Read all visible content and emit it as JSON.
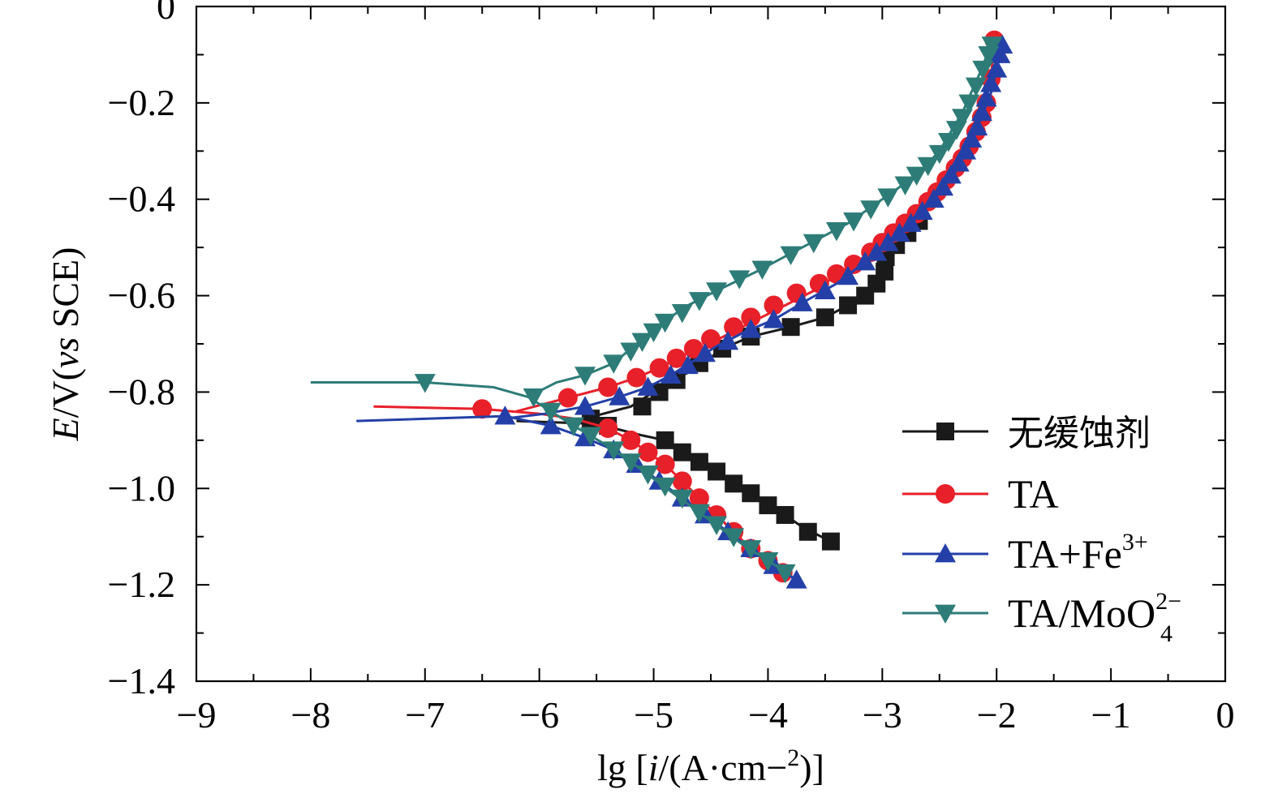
{
  "chart_data": {
    "type": "line",
    "title": "",
    "xlabel": "lg [i/(A·cm−2)]",
    "ylabel": "E/V(vs SCE)",
    "xlim": [
      -9,
      0
    ],
    "ylim": [
      -1.4,
      0
    ],
    "x_ticks": [
      -9,
      -8,
      -7,
      -6,
      -5,
      -4,
      -3,
      -2,
      -1,
      0
    ],
    "y_ticks": [
      0,
      -0.2,
      -0.4,
      -0.6,
      -0.8,
      -1.0,
      -1.2,
      -1.4
    ],
    "x_tick_labels": [
      "−9",
      "−8",
      "−7",
      "−6",
      "−5",
      "−4",
      "−3",
      "−2",
      "−1",
      "0"
    ],
    "y_tick_labels": [
      "0",
      "−0.2",
      "−0.4",
      "−0.6",
      "−0.8",
      "−1.0",
      "−1.2",
      "−1.4"
    ],
    "grid": false,
    "legend_position": "bottom-right",
    "series": [
      {
        "name": "无缓蚀剂",
        "color": "#1a1a1a",
        "marker": "square",
        "cathodic": [
          [
            -6.2,
            -0.86
          ],
          [
            -5.6,
            -0.865
          ],
          [
            -5.35,
            -0.875
          ],
          [
            -5.1,
            -0.89
          ],
          [
            -4.9,
            -0.9
          ],
          [
            -4.75,
            -0.925
          ],
          [
            -4.6,
            -0.945
          ],
          [
            -4.45,
            -0.965
          ],
          [
            -4.3,
            -0.99
          ],
          [
            -4.15,
            -1.01
          ],
          [
            -4.0,
            -1.035
          ],
          [
            -3.85,
            -1.055
          ],
          [
            -3.7,
            -1.08
          ],
          [
            -3.45,
            -1.11
          ]
        ],
        "anodic": [
          [
            -5.6,
            -0.855
          ],
          [
            -5.2,
            -0.83
          ],
          [
            -5.0,
            -0.8
          ],
          [
            -4.85,
            -0.775
          ],
          [
            -4.7,
            -0.76
          ],
          [
            -4.55,
            -0.735
          ],
          [
            -4.35,
            -0.705
          ],
          [
            -4.15,
            -0.685
          ],
          [
            -3.8,
            -0.665
          ],
          [
            -3.5,
            -0.645
          ],
          [
            -3.3,
            -0.62
          ],
          [
            -3.15,
            -0.6
          ],
          [
            -3.05,
            -0.575
          ],
          [
            -2.98,
            -0.55
          ],
          [
            -2.97,
            -0.52
          ],
          [
            -2.9,
            -0.5
          ],
          [
            -2.8,
            -0.475
          ],
          [
            -2.7,
            -0.45
          ]
        ],
        "markers": [
          [
            -5.4,
            -0.87
          ],
          [
            -4.9,
            -0.9
          ],
          [
            -4.75,
            -0.925
          ],
          [
            -4.6,
            -0.945
          ],
          [
            -4.45,
            -0.965
          ],
          [
            -4.3,
            -0.99
          ],
          [
            -4.15,
            -1.01
          ],
          [
            -4.0,
            -1.035
          ],
          [
            -3.85,
            -1.055
          ],
          [
            -3.65,
            -1.09
          ],
          [
            -3.45,
            -1.11
          ],
          [
            -5.55,
            -0.855
          ],
          [
            -5.1,
            -0.83
          ],
          [
            -4.95,
            -0.8
          ],
          [
            -4.8,
            -0.775
          ],
          [
            -4.6,
            -0.74
          ],
          [
            -4.4,
            -0.71
          ],
          [
            -4.15,
            -0.685
          ],
          [
            -3.8,
            -0.665
          ],
          [
            -3.5,
            -0.645
          ],
          [
            -3.3,
            -0.62
          ],
          [
            -3.15,
            -0.6
          ],
          [
            -3.05,
            -0.575
          ],
          [
            -2.98,
            -0.55
          ],
          [
            -2.97,
            -0.52
          ],
          [
            -2.88,
            -0.495
          ],
          [
            -2.78,
            -0.47
          ],
          [
            -2.68,
            -0.445
          ]
        ]
      },
      {
        "name": "TA",
        "color": "#e8202a",
        "marker": "circle",
        "cathodic": [
          [
            -7.45,
            -0.83
          ],
          [
            -6.5,
            -0.835
          ],
          [
            -6.0,
            -0.845
          ],
          [
            -5.7,
            -0.855
          ],
          [
            -5.4,
            -0.875
          ],
          [
            -5.2,
            -0.9
          ],
          [
            -5.05,
            -0.925
          ],
          [
            -4.9,
            -0.95
          ],
          [
            -4.75,
            -0.985
          ],
          [
            -4.6,
            -1.02
          ],
          [
            -4.45,
            -1.055
          ],
          [
            -4.3,
            -1.09
          ],
          [
            -4.15,
            -1.125
          ],
          [
            -4.0,
            -1.155
          ],
          [
            -3.85,
            -1.18
          ]
        ],
        "anodic": [
          [
            -6.2,
            -0.84
          ],
          [
            -5.8,
            -0.815
          ],
          [
            -5.4,
            -0.79
          ],
          [
            -5.15,
            -0.77
          ],
          [
            -4.95,
            -0.75
          ],
          [
            -4.75,
            -0.725
          ],
          [
            -4.55,
            -0.705
          ],
          [
            -4.35,
            -0.68
          ],
          [
            -4.1,
            -0.65
          ],
          [
            -3.85,
            -0.62
          ],
          [
            -3.6,
            -0.59
          ],
          [
            -3.35,
            -0.55
          ],
          [
            -3.1,
            -0.51
          ],
          [
            -2.9,
            -0.47
          ],
          [
            -2.7,
            -0.43
          ],
          [
            -2.5,
            -0.38
          ],
          [
            -2.3,
            -0.32
          ],
          [
            -2.15,
            -0.24
          ],
          [
            -2.05,
            -0.15
          ],
          [
            -2.02,
            -0.07
          ]
        ],
        "markers": [
          [
            -6.5,
            -0.835
          ],
          [
            -5.4,
            -0.875
          ],
          [
            -5.2,
            -0.9
          ],
          [
            -5.05,
            -0.925
          ],
          [
            -4.9,
            -0.95
          ],
          [
            -4.75,
            -0.985
          ],
          [
            -4.6,
            -1.02
          ],
          [
            -4.45,
            -1.055
          ],
          [
            -4.3,
            -1.09
          ],
          [
            -4.15,
            -1.125
          ],
          [
            -4.0,
            -1.15
          ],
          [
            -3.87,
            -1.175
          ],
          [
            -5.75,
            -0.812
          ],
          [
            -5.4,
            -0.79
          ],
          [
            -5.15,
            -0.77
          ],
          [
            -4.95,
            -0.75
          ],
          [
            -4.8,
            -0.73
          ],
          [
            -4.65,
            -0.71
          ],
          [
            -4.5,
            -0.69
          ],
          [
            -4.3,
            -0.665
          ],
          [
            -4.15,
            -0.645
          ],
          [
            -3.95,
            -0.62
          ],
          [
            -3.75,
            -0.595
          ],
          [
            -3.55,
            -0.575
          ],
          [
            -3.4,
            -0.555
          ],
          [
            -3.25,
            -0.535
          ],
          [
            -3.1,
            -0.51
          ],
          [
            -3.0,
            -0.49
          ],
          [
            -2.9,
            -0.47
          ],
          [
            -2.8,
            -0.45
          ],
          [
            -2.7,
            -0.43
          ],
          [
            -2.6,
            -0.405
          ],
          [
            -2.52,
            -0.385
          ],
          [
            -2.44,
            -0.36
          ],
          [
            -2.36,
            -0.335
          ],
          [
            -2.3,
            -0.315
          ],
          [
            -2.24,
            -0.29
          ],
          [
            -2.18,
            -0.26
          ],
          [
            -2.13,
            -0.23
          ],
          [
            -2.09,
            -0.2
          ],
          [
            -2.05,
            -0.15
          ],
          [
            -2.02,
            -0.07
          ]
        ]
      },
      {
        "name": "TA+Fe3+",
        "name_main": "TA+Fe",
        "name_sup": "3+",
        "color": "#2440a8",
        "marker": "triangle-up",
        "cathodic": [
          [
            -7.6,
            -0.86
          ],
          [
            -6.3,
            -0.85
          ],
          [
            -5.9,
            -0.87
          ],
          [
            -5.6,
            -0.895
          ],
          [
            -5.35,
            -0.92
          ],
          [
            -5.15,
            -0.95
          ],
          [
            -4.95,
            -0.985
          ],
          [
            -4.75,
            -1.02
          ],
          [
            -4.55,
            -1.055
          ],
          [
            -4.35,
            -1.09
          ],
          [
            -4.15,
            -1.125
          ],
          [
            -3.95,
            -1.16
          ],
          [
            -3.75,
            -1.19
          ]
        ],
        "anodic": [
          [
            -6.3,
            -0.855
          ],
          [
            -5.95,
            -0.845
          ],
          [
            -5.6,
            -0.83
          ],
          [
            -5.3,
            -0.81
          ],
          [
            -5.05,
            -0.79
          ],
          [
            -4.85,
            -0.765
          ],
          [
            -4.65,
            -0.735
          ],
          [
            -4.45,
            -0.705
          ],
          [
            -4.2,
            -0.675
          ],
          [
            -3.95,
            -0.65
          ],
          [
            -3.7,
            -0.615
          ],
          [
            -3.4,
            -0.575
          ],
          [
            -3.15,
            -0.53
          ],
          [
            -2.95,
            -0.49
          ],
          [
            -2.75,
            -0.45
          ],
          [
            -2.55,
            -0.4
          ],
          [
            -2.35,
            -0.34
          ],
          [
            -2.2,
            -0.27
          ],
          [
            -2.05,
            -0.18
          ],
          [
            -1.95,
            -0.08
          ]
        ],
        "markers": [
          [
            -6.3,
            -0.85
          ],
          [
            -5.9,
            -0.87
          ],
          [
            -5.6,
            -0.895
          ],
          [
            -5.35,
            -0.92
          ],
          [
            -5.15,
            -0.95
          ],
          [
            -4.95,
            -0.985
          ],
          [
            -4.75,
            -1.02
          ],
          [
            -4.55,
            -1.055
          ],
          [
            -4.35,
            -1.09
          ],
          [
            -4.15,
            -1.125
          ],
          [
            -3.95,
            -1.16
          ],
          [
            -3.75,
            -1.19
          ],
          [
            -5.6,
            -0.83
          ],
          [
            -5.3,
            -0.81
          ],
          [
            -5.05,
            -0.79
          ],
          [
            -4.85,
            -0.765
          ],
          [
            -4.7,
            -0.745
          ],
          [
            -4.55,
            -0.72
          ],
          [
            -4.35,
            -0.695
          ],
          [
            -4.15,
            -0.67
          ],
          [
            -3.95,
            -0.65
          ],
          [
            -3.7,
            -0.615
          ],
          [
            -3.5,
            -0.59
          ],
          [
            -3.3,
            -0.56
          ],
          [
            -3.15,
            -0.53
          ],
          [
            -3.05,
            -0.51
          ],
          [
            -2.95,
            -0.49
          ],
          [
            -2.85,
            -0.47
          ],
          [
            -2.75,
            -0.45
          ],
          [
            -2.65,
            -0.425
          ],
          [
            -2.55,
            -0.4
          ],
          [
            -2.47,
            -0.375
          ],
          [
            -2.4,
            -0.35
          ],
          [
            -2.33,
            -0.325
          ],
          [
            -2.27,
            -0.3
          ],
          [
            -2.22,
            -0.275
          ],
          [
            -2.17,
            -0.25
          ],
          [
            -2.13,
            -0.22
          ],
          [
            -2.09,
            -0.19
          ],
          [
            -2.05,
            -0.16
          ],
          [
            -2.0,
            -0.13
          ],
          [
            -1.97,
            -0.1
          ],
          [
            -1.95,
            -0.08
          ]
        ]
      },
      {
        "name": "TA/MoO42−",
        "name_main": "TA/MoO",
        "name_sub": "4",
        "name_sup": "2−",
        "color": "#2e7c78",
        "marker": "triangle-down",
        "cathodic": [
          [
            -8.0,
            -0.78
          ],
          [
            -7.0,
            -0.78
          ],
          [
            -6.4,
            -0.79
          ],
          [
            -6.1,
            -0.81
          ],
          [
            -5.9,
            -0.84
          ],
          [
            -5.7,
            -0.87
          ],
          [
            -5.45,
            -0.905
          ],
          [
            -5.2,
            -0.945
          ],
          [
            -5.0,
            -0.98
          ],
          [
            -4.8,
            -1.015
          ],
          [
            -4.6,
            -1.05
          ],
          [
            -4.4,
            -1.085
          ],
          [
            -4.2,
            -1.12
          ],
          [
            -4.0,
            -1.15
          ],
          [
            -3.8,
            -1.18
          ]
        ],
        "anodic": [
          [
            -6.1,
            -0.81
          ],
          [
            -5.85,
            -0.78
          ],
          [
            -5.6,
            -0.765
          ],
          [
            -5.35,
            -0.74
          ],
          [
            -5.15,
            -0.7
          ],
          [
            -4.95,
            -0.66
          ],
          [
            -4.7,
            -0.62
          ],
          [
            -4.45,
            -0.59
          ],
          [
            -4.1,
            -0.55
          ],
          [
            -3.7,
            -0.5
          ],
          [
            -3.3,
            -0.45
          ],
          [
            -3.0,
            -0.4
          ],
          [
            -2.7,
            -0.35
          ],
          [
            -2.5,
            -0.3
          ],
          [
            -2.3,
            -0.22
          ],
          [
            -2.15,
            -0.14
          ],
          [
            -2.05,
            -0.08
          ]
        ],
        "markers": [
          [
            -7.0,
            -0.78
          ],
          [
            -6.05,
            -0.81
          ],
          [
            -5.9,
            -0.84
          ],
          [
            -5.7,
            -0.87
          ],
          [
            -5.55,
            -0.89
          ],
          [
            -5.35,
            -0.92
          ],
          [
            -5.2,
            -0.945
          ],
          [
            -5.05,
            -0.97
          ],
          [
            -4.9,
            -0.995
          ],
          [
            -4.75,
            -1.02
          ],
          [
            -4.6,
            -1.05
          ],
          [
            -4.45,
            -1.075
          ],
          [
            -4.3,
            -1.1
          ],
          [
            -4.15,
            -1.125
          ],
          [
            -4.0,
            -1.15
          ],
          [
            -3.85,
            -1.175
          ],
          [
            -5.6,
            -0.765
          ],
          [
            -5.35,
            -0.74
          ],
          [
            -5.2,
            -0.715
          ],
          [
            -5.1,
            -0.695
          ],
          [
            -5.0,
            -0.675
          ],
          [
            -4.9,
            -0.655
          ],
          [
            -4.75,
            -0.635
          ],
          [
            -4.6,
            -0.61
          ],
          [
            -4.45,
            -0.59
          ],
          [
            -4.25,
            -0.565
          ],
          [
            -4.05,
            -0.545
          ],
          [
            -3.8,
            -0.515
          ],
          [
            -3.6,
            -0.49
          ],
          [
            -3.4,
            -0.465
          ],
          [
            -3.25,
            -0.445
          ],
          [
            -3.1,
            -0.42
          ],
          [
            -2.95,
            -0.395
          ],
          [
            -2.8,
            -0.37
          ],
          [
            -2.7,
            -0.35
          ],
          [
            -2.6,
            -0.33
          ],
          [
            -2.5,
            -0.305
          ],
          [
            -2.42,
            -0.28
          ],
          [
            -2.35,
            -0.255
          ],
          [
            -2.3,
            -0.23
          ],
          [
            -2.24,
            -0.2
          ],
          [
            -2.18,
            -0.165
          ],
          [
            -2.12,
            -0.13
          ],
          [
            -2.07,
            -0.1
          ],
          [
            -2.04,
            -0.08
          ]
        ]
      }
    ]
  }
}
